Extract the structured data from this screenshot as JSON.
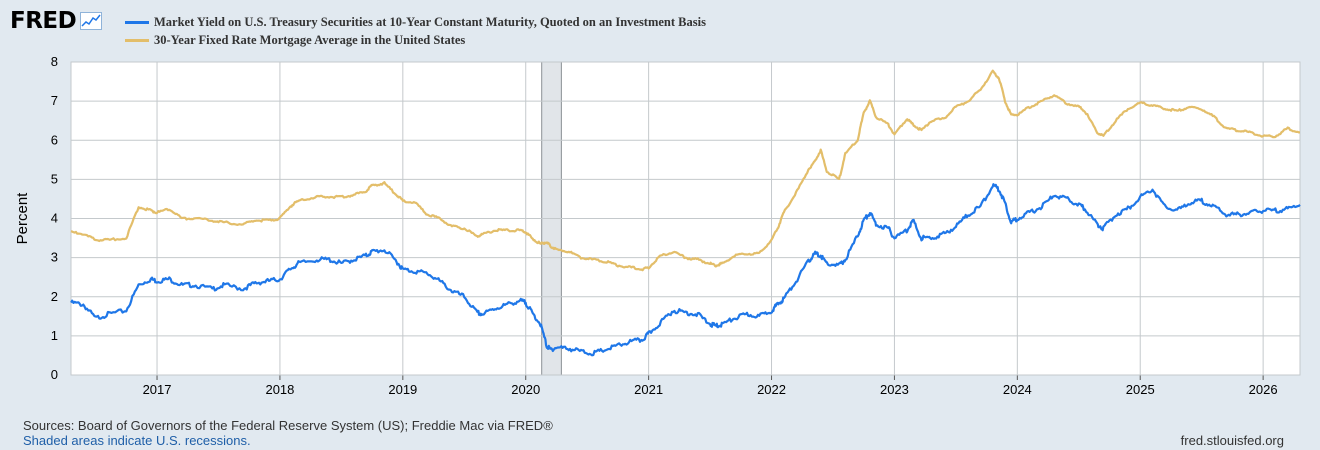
{
  "logo": {
    "text": "FRED"
  },
  "colors": {
    "background": "#e1e9f0",
    "plot_bg": "#ffffff",
    "grid": "#c4c9cc",
    "recession": "#e1e5e9"
  },
  "chart_data": {
    "type": "line",
    "xlabel": "",
    "ylabel": "Percent",
    "ylim": [
      0,
      8
    ],
    "yticks": [
      "0",
      "1",
      "2",
      "3",
      "4",
      "5",
      "6",
      "7",
      "8"
    ],
    "xlim": [
      2016.3,
      2026.3
    ],
    "xticks": [
      "2017",
      "2018",
      "2019",
      "2020",
      "2021",
      "2022",
      "2023",
      "2024",
      "2025",
      "2026"
    ],
    "grid": true,
    "legend_position": "top-left",
    "recession": {
      "start": 2020.13,
      "end": 2020.29
    },
    "series": [
      {
        "name": "Market Yield on U.S. Treasury Securities at 10-Year Constant Maturity, Quoted on an Investment Basis",
        "color": "#1f77e8",
        "x": [
          2016.3,
          2016.4,
          2016.5,
          2016.6,
          2016.75,
          2016.85,
          2016.95,
          2017.0,
          2017.1,
          2017.2,
          2017.3,
          2017.45,
          2017.55,
          2017.7,
          2017.8,
          2017.9,
          2018.0,
          2018.08,
          2018.15,
          2018.3,
          2018.4,
          2018.5,
          2018.6,
          2018.7,
          2018.75,
          2018.85,
          2018.95,
          2019.0,
          2019.1,
          2019.2,
          2019.3,
          2019.4,
          2019.5,
          2019.6,
          2019.65,
          2019.75,
          2019.85,
          2019.95,
          2020.0,
          2020.05,
          2020.12,
          2020.17,
          2020.2,
          2020.25,
          2020.35,
          2020.45,
          2020.55,
          2020.65,
          2020.75,
          2020.85,
          2020.95,
          2021.0,
          2021.1,
          2021.2,
          2021.3,
          2021.4,
          2021.5,
          2021.55,
          2021.6,
          2021.7,
          2021.8,
          2021.9,
          2022.0,
          2022.05,
          2022.1,
          2022.2,
          2022.3,
          2022.35,
          2022.4,
          2022.45,
          2022.55,
          2022.6,
          2022.7,
          2022.75,
          2022.8,
          2022.85,
          2022.95,
          2023.0,
          2023.1,
          2023.15,
          2023.22,
          2023.3,
          2023.4,
          2023.5,
          2023.6,
          2023.7,
          2023.8,
          2023.85,
          2023.9,
          2023.95,
          2024.0,
          2024.1,
          2024.2,
          2024.3,
          2024.4,
          2024.5,
          2024.55,
          2024.65,
          2024.7,
          2024.8,
          2024.9,
          2025.0,
          2025.1,
          2025.2,
          2025.3,
          2025.4,
          2025.5,
          2025.6,
          2025.7,
          2025.8,
          2025.9,
          2026.0,
          2026.1,
          2026.2,
          2026.3
        ],
        "values": [
          1.85,
          1.8,
          1.45,
          1.55,
          1.65,
          2.3,
          2.45,
          2.4,
          2.45,
          2.3,
          2.3,
          2.2,
          2.3,
          2.2,
          2.35,
          2.4,
          2.45,
          2.7,
          2.85,
          2.95,
          2.95,
          2.85,
          2.95,
          3.05,
          3.15,
          3.2,
          2.9,
          2.7,
          2.65,
          2.6,
          2.4,
          2.15,
          2.0,
          1.6,
          1.55,
          1.7,
          1.8,
          1.9,
          1.85,
          1.6,
          1.3,
          0.75,
          0.65,
          0.7,
          0.68,
          0.6,
          0.55,
          0.65,
          0.75,
          0.85,
          0.9,
          1.05,
          1.35,
          1.65,
          1.6,
          1.55,
          1.3,
          1.25,
          1.3,
          1.45,
          1.55,
          1.5,
          1.65,
          1.8,
          1.95,
          2.4,
          2.9,
          3.1,
          3.05,
          2.85,
          2.8,
          2.95,
          3.55,
          3.95,
          4.15,
          3.85,
          3.75,
          3.5,
          3.7,
          3.95,
          3.5,
          3.5,
          3.6,
          3.8,
          4.1,
          4.3,
          4.85,
          4.75,
          4.4,
          3.9,
          4.0,
          4.15,
          4.3,
          4.6,
          4.5,
          4.35,
          4.25,
          3.85,
          3.75,
          4.1,
          4.25,
          4.55,
          4.75,
          4.3,
          4.2,
          4.4,
          4.45,
          4.3,
          4.1,
          4.1,
          4.15,
          4.2,
          4.2,
          4.25,
          4.35
        ]
      },
      {
        "name": "30-Year Fixed Rate Mortgage Average in the United States",
        "color": "#e3be6a",
        "x": [
          2016.3,
          2016.4,
          2016.5,
          2016.6,
          2016.75,
          2016.85,
          2016.95,
          2017.0,
          2017.1,
          2017.2,
          2017.3,
          2017.45,
          2017.55,
          2017.7,
          2017.8,
          2017.9,
          2018.0,
          2018.08,
          2018.15,
          2018.3,
          2018.4,
          2018.5,
          2018.6,
          2018.7,
          2018.75,
          2018.85,
          2018.95,
          2019.0,
          2019.1,
          2019.2,
          2019.3,
          2019.4,
          2019.5,
          2019.6,
          2019.65,
          2019.75,
          2019.85,
          2019.95,
          2020.0,
          2020.05,
          2020.12,
          2020.17,
          2020.2,
          2020.25,
          2020.35,
          2020.45,
          2020.55,
          2020.65,
          2020.75,
          2020.85,
          2020.95,
          2021.0,
          2021.1,
          2021.2,
          2021.3,
          2021.4,
          2021.5,
          2021.55,
          2021.6,
          2021.7,
          2021.8,
          2021.9,
          2022.0,
          2022.05,
          2022.1,
          2022.2,
          2022.3,
          2022.35,
          2022.4,
          2022.45,
          2022.55,
          2022.6,
          2022.7,
          2022.75,
          2022.8,
          2022.85,
          2022.95,
          2023.0,
          2023.1,
          2023.15,
          2023.22,
          2023.3,
          2023.4,
          2023.5,
          2023.6,
          2023.7,
          2023.8,
          2023.85,
          2023.9,
          2023.95,
          2024.0,
          2024.1,
          2024.2,
          2024.3,
          2024.4,
          2024.5,
          2024.55,
          2024.65,
          2024.7,
          2024.8,
          2024.9,
          2025.0,
          2025.1,
          2025.2,
          2025.3,
          2025.4,
          2025.5,
          2025.6,
          2025.7,
          2025.8,
          2025.9,
          2026.0,
          2026.1,
          2026.2,
          2026.3
        ],
        "values": [
          3.65,
          3.6,
          3.45,
          3.45,
          3.5,
          4.3,
          4.2,
          4.15,
          4.25,
          4.0,
          4.0,
          3.95,
          3.9,
          3.85,
          3.95,
          3.95,
          4.0,
          4.3,
          4.45,
          4.55,
          4.55,
          4.55,
          4.6,
          4.7,
          4.85,
          4.9,
          4.6,
          4.45,
          4.4,
          4.1,
          4.0,
          3.8,
          3.75,
          3.55,
          3.6,
          3.7,
          3.7,
          3.7,
          3.65,
          3.5,
          3.35,
          3.4,
          3.3,
          3.2,
          3.15,
          3.0,
          2.95,
          2.9,
          2.8,
          2.75,
          2.7,
          2.75,
          3.05,
          3.15,
          3.0,
          2.95,
          2.85,
          2.8,
          2.85,
          3.05,
          3.1,
          3.1,
          3.45,
          3.75,
          4.15,
          4.65,
          5.25,
          5.45,
          5.75,
          5.2,
          5.0,
          5.65,
          6.0,
          6.7,
          7.0,
          6.6,
          6.4,
          6.15,
          6.55,
          6.4,
          6.25,
          6.5,
          6.55,
          6.85,
          7.0,
          7.3,
          7.75,
          7.6,
          7.0,
          6.65,
          6.65,
          6.85,
          7.0,
          7.15,
          6.95,
          6.85,
          6.75,
          6.2,
          6.1,
          6.5,
          6.8,
          6.95,
          6.9,
          6.8,
          6.75,
          6.85,
          6.8,
          6.6,
          6.3,
          6.25,
          6.2,
          6.1,
          6.1,
          6.3,
          6.2
        ]
      }
    ]
  },
  "footer": {
    "sources": "Sources: Board of Governors of the Federal Reserve System (US); Freddie Mac via FRED®",
    "recessions": "Shaded areas indicate U.S. recessions.",
    "url": "fred.stlouisfed.org"
  }
}
